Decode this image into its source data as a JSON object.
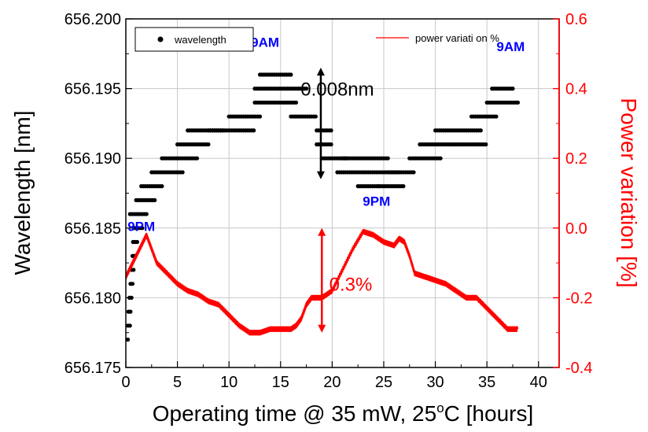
{
  "chart_data": {
    "type": "scatter",
    "x_axis": {
      "label_prefix": "Operating time @ 35 mW, 25",
      "label_sup": "o",
      "label_suffix": "C [hours]",
      "range": [
        0,
        42
      ],
      "ticks": [
        0,
        5,
        10,
        15,
        20,
        25,
        30,
        35,
        40
      ],
      "tick_labels": [
        "0",
        "5",
        "10",
        "15",
        "20",
        "25",
        "30",
        "35",
        "40"
      ]
    },
    "y_left": {
      "label": "Wavelength [nm]",
      "range": [
        656.175,
        656.2
      ],
      "ticks": [
        656.175,
        656.18,
        656.185,
        656.19,
        656.195,
        656.2
      ],
      "tick_labels": [
        "656.175",
        "656.180",
        "656.185",
        "656.190",
        "656.195",
        "656.200"
      ],
      "color": "#000000"
    },
    "y_right": {
      "label": "Power variation [%]",
      "range": [
        -0.4,
        0.6
      ],
      "ticks": [
        -0.4,
        -0.2,
        0.0,
        0.2,
        0.4,
        0.6
      ],
      "tick_labels": [
        "-0.4",
        "-0.2",
        "0.0",
        "0.2",
        "0.4",
        "0.6"
      ],
      "color": "#ff0000"
    },
    "grid": true,
    "series": [
      {
        "name": "wavelength",
        "axis": "left",
        "style": "dots",
        "color": "#000000",
        "segments": [
          [
            0.0,
            0.25,
            656.177
          ],
          [
            0.2,
            0.45,
            656.178
          ],
          [
            0.25,
            0.55,
            656.179
          ],
          [
            0.35,
            0.65,
            656.18
          ],
          [
            0.45,
            0.75,
            656.181
          ],
          [
            0.55,
            0.85,
            656.182
          ],
          [
            0.65,
            0.95,
            656.183
          ],
          [
            0.7,
            1.2,
            656.184
          ],
          [
            0.8,
            1.6,
            656.185
          ],
          [
            0.4,
            2.0,
            656.186
          ],
          [
            1.0,
            2.9,
            656.187
          ],
          [
            1.5,
            3.5,
            656.188
          ],
          [
            2.5,
            5.5,
            656.189
          ],
          [
            3.5,
            7.0,
            656.19
          ],
          [
            5.0,
            8.0,
            656.191
          ],
          [
            6.0,
            9.5,
            656.192
          ],
          [
            8.0,
            12.5,
            656.192
          ],
          [
            10.0,
            13.0,
            656.193
          ],
          [
            12.5,
            16.5,
            656.194
          ],
          [
            12.5,
            17.5,
            656.195
          ],
          [
            13.0,
            16.0,
            656.196
          ],
          [
            16.0,
            18.5,
            656.193
          ],
          [
            18.5,
            20.0,
            656.192
          ],
          [
            18.5,
            20.0,
            656.191
          ],
          [
            19.0,
            21.5,
            656.19
          ],
          [
            20.5,
            26.5,
            656.189
          ],
          [
            21.0,
            25.5,
            656.19
          ],
          [
            22.5,
            24.5,
            656.188
          ],
          [
            24.5,
            27.0,
            656.188
          ],
          [
            25.5,
            28.0,
            656.189
          ],
          [
            27.5,
            30.5,
            656.19
          ],
          [
            28.5,
            31.5,
            656.191
          ],
          [
            30.0,
            34.5,
            656.192
          ],
          [
            31.5,
            35.0,
            656.191
          ],
          [
            33.5,
            36.0,
            656.193
          ],
          [
            35.0,
            38.0,
            656.194
          ],
          [
            35.5,
            37.5,
            656.195
          ]
        ]
      },
      {
        "name": "power variati on %",
        "axis": "right",
        "style": "line",
        "color": "#ff0000",
        "x": [
          0,
          0.5,
          1.0,
          1.5,
          2.0,
          2.5,
          3.0,
          4.0,
          5.0,
          6.0,
          7.0,
          8.0,
          9.0,
          10.0,
          11.0,
          12.0,
          13.0,
          14.0,
          15.0,
          16.0,
          16.5,
          17.0,
          17.5,
          18.0,
          19.0,
          20.0,
          21.0,
          22.0,
          23.0,
          24.0,
          25.0,
          26.0,
          26.5,
          27.0,
          27.5,
          28.0,
          29.0,
          30.0,
          31.0,
          32.0,
          33.0,
          34.0,
          35.0,
          36.0,
          37.0,
          38.0
        ],
        "y": [
          -0.14,
          -0.11,
          -0.08,
          -0.05,
          -0.02,
          -0.06,
          -0.1,
          -0.13,
          -0.16,
          -0.18,
          -0.19,
          -0.21,
          -0.22,
          -0.25,
          -0.28,
          -0.3,
          -0.3,
          -0.29,
          -0.29,
          -0.29,
          -0.28,
          -0.26,
          -0.22,
          -0.2,
          -0.2,
          -0.18,
          -0.12,
          -0.06,
          -0.01,
          -0.02,
          -0.04,
          -0.05,
          -0.03,
          -0.04,
          -0.08,
          -0.13,
          -0.14,
          -0.15,
          -0.16,
          -0.18,
          -0.2,
          -0.2,
          -0.23,
          -0.26,
          -0.29,
          -0.29
        ]
      }
    ],
    "legend": {
      "wavelength": "wavelength",
      "power": "power variati on %"
    },
    "annotations": [
      {
        "text": "9PM",
        "x": 1.5,
        "y": 656.1848,
        "axis": "left",
        "color": "#0000ff"
      },
      {
        "text": "9AM",
        "x": 13.5,
        "y": 656.198,
        "axis": "left",
        "color": "#0000ff"
      },
      {
        "text": "9PM",
        "x": 24.3,
        "y": 656.1866,
        "axis": "left",
        "color": "#0000ff"
      },
      {
        "text": "9AM",
        "x": 37.3,
        "y": 656.1977,
        "axis": "left",
        "color": "#0000ff"
      },
      {
        "text": "0.008nm",
        "x": 20.5,
        "y": 656.1945,
        "axis": "left",
        "color": "#000000"
      },
      {
        "text": "0.3%",
        "x": 21.8,
        "y": -0.18,
        "axis": "right",
        "color": "#ff0000"
      }
    ],
    "range_arrows": [
      {
        "x": 18.9,
        "from": 656.1885,
        "to": 656.1965,
        "axis": "left",
        "color": "#000000"
      },
      {
        "x": 19.0,
        "from": -0.3,
        "to": 0.0,
        "axis": "right",
        "color": "#ff0000"
      }
    ]
  }
}
